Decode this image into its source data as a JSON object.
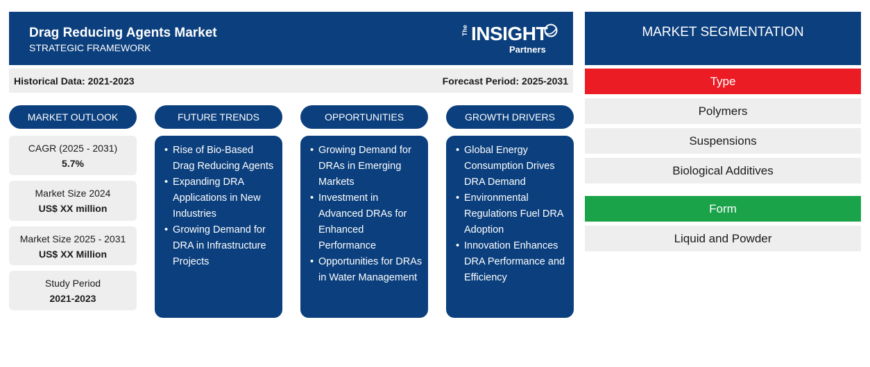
{
  "header": {
    "title": "Drag Reducing Agents Market",
    "subtitle": "STRATEGIC FRAMEWORK",
    "logo": {
      "the": "The",
      "insight": "INSIGHT",
      "partners": "Partners"
    }
  },
  "period": {
    "historical": "Historical Data: 2021-2023",
    "forecast": "Forecast Period: 2025-2031"
  },
  "outlook": {
    "label": "MARKET OUTLOOK",
    "stats": [
      {
        "label": "CAGR (2025 - 2031)",
        "value": "5.7%"
      },
      {
        "label": "Market Size 2024",
        "value": "US$ XX million"
      },
      {
        "label": "Market Size 2025 - 2031",
        "value": "US$ XX Million"
      },
      {
        "label": "Study Period",
        "value": "2021-2023"
      }
    ]
  },
  "columns": [
    {
      "label": "FUTURE TRENDS",
      "items": [
        "Rise of Bio-Based Drag Reducing Agents",
        "Expanding DRA Applications in New Industries",
        "Growing Demand for DRA in Infrastructure Projects"
      ]
    },
    {
      "label": "OPPORTUNITIES",
      "items": [
        "Growing Demand for DRAs in Emerging Markets",
        "Investment in Advanced DRAs for Enhanced Performance",
        "Opportunities for DRAs in Water Management"
      ]
    },
    {
      "label": "GROWTH DRIVERS",
      "items": [
        "Global Energy Consumption Drives DRA Demand",
        "Environmental Regulations Fuel DRA Adoption",
        "Innovation Enhances DRA Performance and Efficiency"
      ]
    }
  ],
  "segmentation": {
    "title": "MARKET SEGMENTATION",
    "type": {
      "label": "Type",
      "color": "#ec1c24",
      "items": [
        "Polymers",
        "Suspensions",
        "Biological Additives"
      ]
    },
    "form": {
      "label": "Form",
      "color": "#1ba34a",
      "items": [
        "Liquid and Powder"
      ]
    }
  },
  "colors": {
    "primary": "#0b3f7d",
    "panel": "#eeeeee"
  },
  "icons": {
    "logo": "insight-partners-logo-icon"
  }
}
